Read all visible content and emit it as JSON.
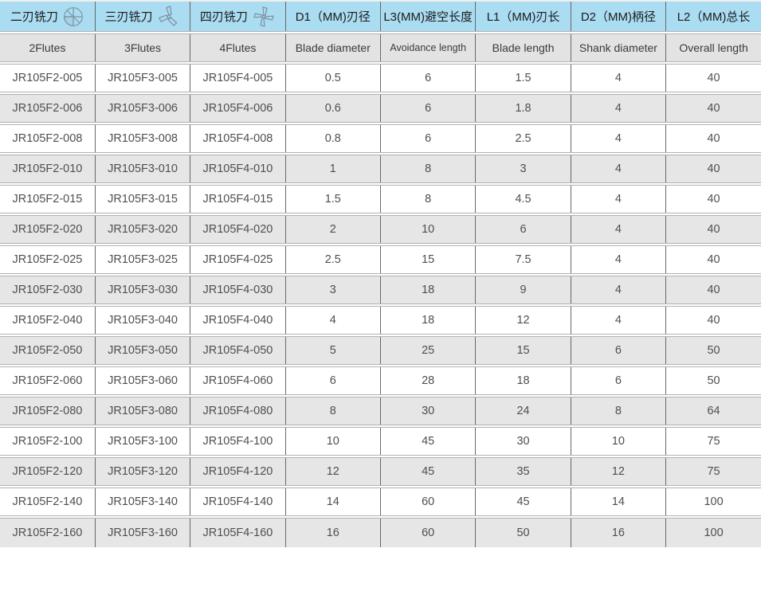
{
  "table": {
    "header_cn": [
      {
        "label": "二刃铣刀",
        "icon": "two-flute-endmill-icon"
      },
      {
        "label": "三刃铣刀",
        "icon": "three-flute-endmill-icon"
      },
      {
        "label": "四刃铣刀",
        "icon": "four-flute-endmill-icon"
      },
      {
        "label": "D1（MM)刃径"
      },
      {
        "label": "L3(MM)避空长度"
      },
      {
        "label": "L1（MM)刃长"
      },
      {
        "label": "D2（MM)柄径"
      },
      {
        "label": "L2（MM)总长"
      }
    ],
    "header_en": [
      {
        "label": "2Flutes"
      },
      {
        "label": "3Flutes"
      },
      {
        "label": "4Flutes"
      },
      {
        "label": "Blade diameter"
      },
      {
        "label": "Avoidance length"
      },
      {
        "label": "Blade length"
      },
      {
        "label": "Shank diameter"
      },
      {
        "label": "Overall length"
      }
    ],
    "rows": [
      [
        "JR105F2-005",
        "JR105F3-005",
        "JR105F4-005",
        "0.5",
        "6",
        "1.5",
        "4",
        "40"
      ],
      [
        "JR105F2-006",
        "JR105F3-006",
        "JR105F4-006",
        "0.6",
        "6",
        "1.8",
        "4",
        "40"
      ],
      [
        "JR105F2-008",
        "JR105F3-008",
        "JR105F4-008",
        "0.8",
        "6",
        "2.5",
        "4",
        "40"
      ],
      [
        "JR105F2-010",
        "JR105F3-010",
        "JR105F4-010",
        "1",
        "8",
        "3",
        "4",
        "40"
      ],
      [
        "JR105F2-015",
        "JR105F3-015",
        "JR105F4-015",
        "1.5",
        "8",
        "4.5",
        "4",
        "40"
      ],
      [
        "JR105F2-020",
        "JR105F3-020",
        "JR105F4-020",
        "2",
        "10",
        "6",
        "4",
        "40"
      ],
      [
        "JR105F2-025",
        "JR105F3-025",
        "JR105F4-025",
        "2.5",
        "15",
        "7.5",
        "4",
        "40"
      ],
      [
        "JR105F2-030",
        "JR105F3-030",
        "JR105F4-030",
        "3",
        "18",
        "9",
        "4",
        "40"
      ],
      [
        "JR105F2-040",
        "JR105F3-040",
        "JR105F4-040",
        "4",
        "18",
        "12",
        "4",
        "40"
      ],
      [
        "JR105F2-050",
        "JR105F3-050",
        "JR105F4-050",
        "5",
        "25",
        "15",
        "6",
        "50"
      ],
      [
        "JR105F2-060",
        "JR105F3-060",
        "JR105F4-060",
        "6",
        "28",
        "18",
        "6",
        "50"
      ],
      [
        "JR105F2-080",
        "JR105F3-080",
        "JR105F4-080",
        "8",
        "30",
        "24",
        "8",
        "64"
      ],
      [
        "JR105F2-100",
        "JR105F3-100",
        "JR105F4-100",
        "10",
        "45",
        "30",
        "10",
        "75"
      ],
      [
        "JR105F2-120",
        "JR105F3-120",
        "JR105F4-120",
        "12",
        "45",
        "35",
        "12",
        "75"
      ],
      [
        "JR105F2-140",
        "JR105F3-140",
        "JR105F4-140",
        "14",
        "60",
        "45",
        "14",
        "100"
      ],
      [
        "JR105F2-160",
        "JR105F3-160",
        "JR105F4-160",
        "16",
        "60",
        "50",
        "16",
        "100"
      ]
    ],
    "colors": {
      "header_bg": "#aadcf2",
      "header_en_bg": "#e3e3e3",
      "row_alt_bg": "#e6e6e6",
      "vertical_grid": "#686868",
      "horizontal_grid": "#b0b0b0",
      "icon_stroke": "#7f93a2"
    }
  }
}
